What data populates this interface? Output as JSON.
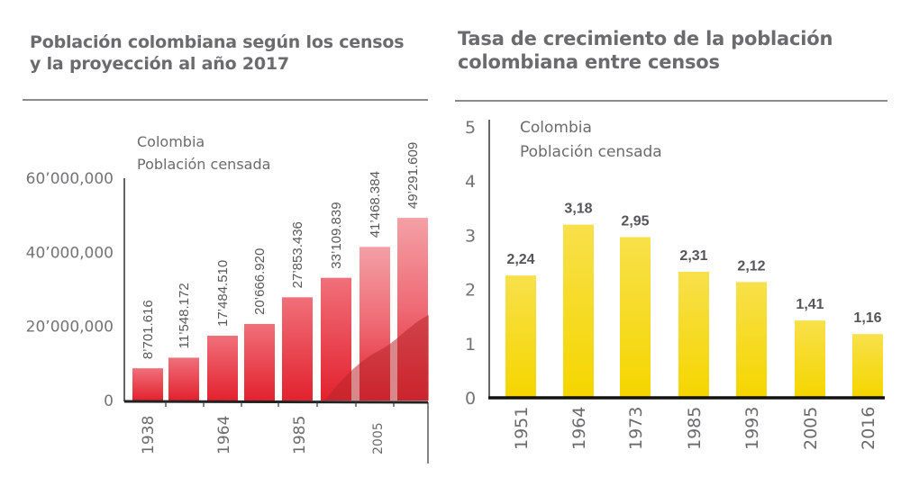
{
  "chart_data": [
    {
      "type": "bar",
      "title": "Población colombiana según los censos y la proyección al año 2017",
      "legend_title": [
        "Colombia",
        "Población censada"
      ],
      "legend_placement": "top-left",
      "xlabel": "",
      "ylabel": "",
      "ylim": [
        0,
        60000000
      ],
      "y_ticks": [
        0,
        20000000,
        40000000,
        60000000
      ],
      "y_tick_labels": [
        "0",
        "20’000,000",
        "40’000,000",
        "60’000,000"
      ],
      "grid": false,
      "x_tick_labels": [
        "1938",
        "1964",
        "1985",
        "2005"
      ],
      "bar_labels": [
        "8’701.616",
        "11’548.172",
        "17’484.510",
        "20’666.920",
        "27’853.436",
        "33’109.839",
        "41’468.384",
        "49’291.609"
      ],
      "values": [
        8701616,
        11548172,
        17484510,
        20666920,
        27853436,
        33109839,
        41468384,
        49291609
      ],
      "color": "#e3303a"
    },
    {
      "type": "bar",
      "title": "Tasa de crecimiento de la población colombiana entre censos",
      "legend_title": [
        "Colombia",
        "Población censada"
      ],
      "legend_placement": "top-left",
      "xlabel": "",
      "ylabel": "",
      "ylim": [
        0,
        5
      ],
      "y_ticks": [
        0,
        1,
        2,
        3,
        4,
        5
      ],
      "y_tick_labels": [
        "0",
        "1",
        "2",
        "3",
        "4",
        "5"
      ],
      "grid": false,
      "categories": [
        "1951",
        "1964",
        "1973",
        "1985",
        "1993",
        "2005",
        "2016"
      ],
      "values": [
        2.24,
        3.18,
        2.95,
        2.31,
        2.12,
        1.41,
        1.16
      ],
      "bar_labels": [
        "2,24",
        "3,18",
        "2,95",
        "2,31",
        "2,12",
        "1,41",
        "1,16"
      ],
      "color": "#f5d800"
    }
  ],
  "left": {
    "title_line1": "Población colombiana según los censos",
    "title_line2": "y la proyección al año 2017"
  },
  "right": {
    "title_line1": "Tasa de crecimiento de la población",
    "title_line2": "colombiana entre censos"
  }
}
